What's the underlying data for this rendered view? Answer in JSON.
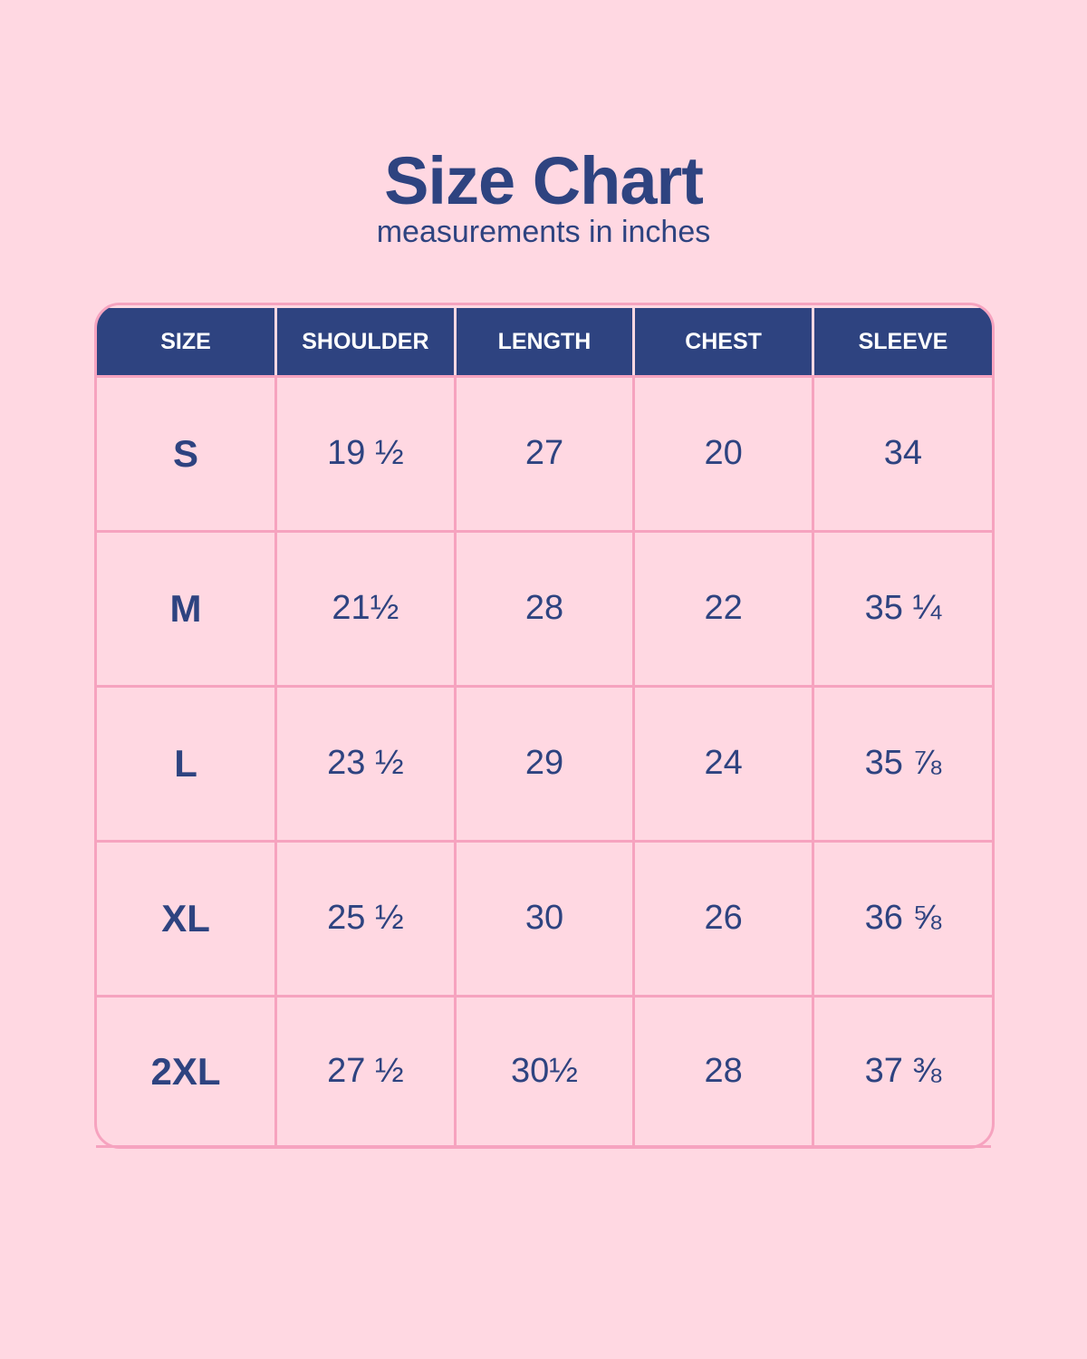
{
  "header": {
    "title": "Size Chart",
    "subtitle": "measurements in inches"
  },
  "colors": {
    "background": "#ffd8e2",
    "header_fill": "#2e4380",
    "text": "#2e4380",
    "grid_lines": "#f6a3bf"
  },
  "table": {
    "columns": [
      "SIZE",
      "SHOULDER",
      "LENGTH",
      "CHEST",
      "SLEEVE"
    ],
    "rows": [
      [
        "S",
        "19 ½",
        "27",
        "20",
        "34"
      ],
      [
        "M",
        "21½",
        "28",
        "22",
        "35 ¼"
      ],
      [
        "L",
        "23 ½",
        "29",
        "24",
        "35 ⅞"
      ],
      [
        "XL",
        "25 ½",
        "30",
        "26",
        "36 ⅝"
      ],
      [
        "2XL",
        "27 ½",
        "30½",
        "28",
        "37 ⅜"
      ]
    ]
  }
}
